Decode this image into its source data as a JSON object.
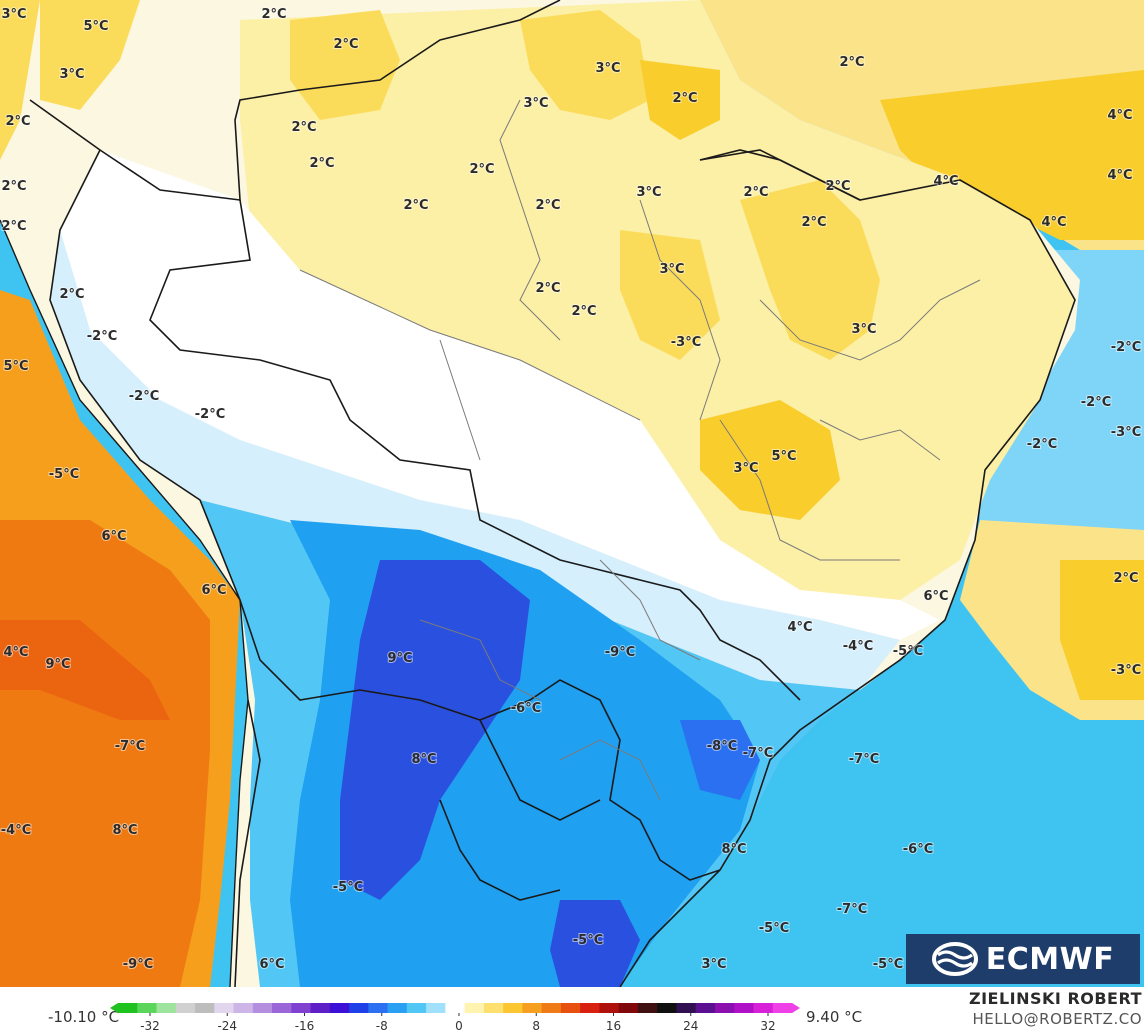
{
  "map": {
    "colors": {
      "ocean_blue": "#3fc4f2",
      "deep_blue": "#2a50e0",
      "mid_blue": "#1fa0f0",
      "light_blue": "#a8e2fb",
      "pale_blue": "#e4f4fd",
      "pale_yellow": "#fbefb0",
      "yellow": "#fbdc5a",
      "gold": "#f5c21a",
      "orange": "#f59f1c",
      "dark_orange": "#f07a12",
      "deep_orange": "#eb6410",
      "border": "#1a1a1a",
      "state_border": "#7a7a7a"
    },
    "labels": [
      {
        "text": "3°C"
      },
      {
        "text": "5°C"
      },
      {
        "text": "2°C"
      },
      {
        "text": "2°C"
      },
      {
        "text": "3°C"
      },
      {
        "text": "3°C"
      },
      {
        "text": "3°C"
      },
      {
        "text": "2°C"
      },
      {
        "text": "2°C"
      },
      {
        "text": "2°C"
      },
      {
        "text": "2°C"
      },
      {
        "text": "2°C"
      },
      {
        "text": "2°C"
      },
      {
        "text": "2°C"
      },
      {
        "text": "2°C"
      },
      {
        "text": "4°C"
      },
      {
        "text": "4°C"
      },
      {
        "text": "4°C"
      },
      {
        "text": "4°C"
      },
      {
        "text": "2°C"
      },
      {
        "text": "3°C"
      },
      {
        "text": "2°C"
      },
      {
        "text": "2°C"
      },
      {
        "text": "2°C"
      },
      {
        "text": "2°C"
      },
      {
        "text": "3°C"
      },
      {
        "text": "2°C"
      },
      {
        "text": "2°C"
      },
      {
        "text": "2°C"
      },
      {
        "text": "-2°C"
      },
      {
        "text": "-3°C"
      },
      {
        "text": "3°C"
      },
      {
        "text": "-2°C"
      },
      {
        "text": "-2°C"
      },
      {
        "text": "-3°C"
      },
      {
        "text": "-2°C"
      },
      {
        "text": "-2°C"
      },
      {
        "text": "-2°C"
      },
      {
        "text": "5°C"
      },
      {
        "text": "3°C"
      },
      {
        "text": "5°C"
      },
      {
        "text": "-5°C"
      },
      {
        "text": "6°C"
      },
      {
        "text": "6°C"
      },
      {
        "text": "6°C"
      },
      {
        "text": "2°C"
      },
      {
        "text": "4°C"
      },
      {
        "text": "-4°C"
      },
      {
        "text": "-5°C"
      },
      {
        "text": "-3°C"
      },
      {
        "text": "4°C"
      },
      {
        "text": "9°C"
      },
      {
        "text": "9°C"
      },
      {
        "text": "-9°C"
      },
      {
        "text": "-6°C"
      },
      {
        "text": "-7°C"
      },
      {
        "text": "8°C"
      },
      {
        "text": "-8°C"
      },
      {
        "text": "-7°C"
      },
      {
        "text": "-7°C"
      },
      {
        "text": "-4°C"
      },
      {
        "text": "8°C"
      },
      {
        "text": "8°C"
      },
      {
        "text": "-6°C"
      },
      {
        "text": "-5°C"
      },
      {
        "text": "-7°C"
      },
      {
        "text": "-5°C"
      },
      {
        "text": "-5°C"
      },
      {
        "text": "-9°C"
      },
      {
        "text": "6°C"
      },
      {
        "text": "3°C"
      },
      {
        "text": "-5°C"
      },
      {
        "text": "-6°C"
      }
    ]
  },
  "logo": {
    "text": "ECMWF"
  },
  "legend": {
    "min_label": "-10.10 °C",
    "max_label": "9.40 °C",
    "ticks": [
      "-32",
      "-24",
      "-16",
      "-8",
      "0",
      "8",
      "16",
      "24",
      "32"
    ],
    "colors": [
      "#1fc21f",
      "#5ad65a",
      "#9ee39e",
      "#d0d0d0",
      "#bdbdbd",
      "#e2d6ef",
      "#cdb5e8",
      "#b48fe0",
      "#9a66d8",
      "#8040d0",
      "#5e1fc8",
      "#3d10d8",
      "#2040e8",
      "#2a70f0",
      "#2aa0f2",
      "#52c6f5",
      "#a0e0fa",
      "#ffffff",
      "#fff3b0",
      "#fde070",
      "#fbc630",
      "#f5a020",
      "#ef7a16",
      "#e85010",
      "#d8200e",
      "#b0100c",
      "#80080a",
      "#401010",
      "#101010",
      "#301050",
      "#5a1090",
      "#8a10b0",
      "#b010c8",
      "#d820d8",
      "#f040e8"
    ]
  },
  "credits": {
    "author": "ZIELINSKI ROBERT",
    "email": "HELLO@ROBERTZ.CO"
  }
}
